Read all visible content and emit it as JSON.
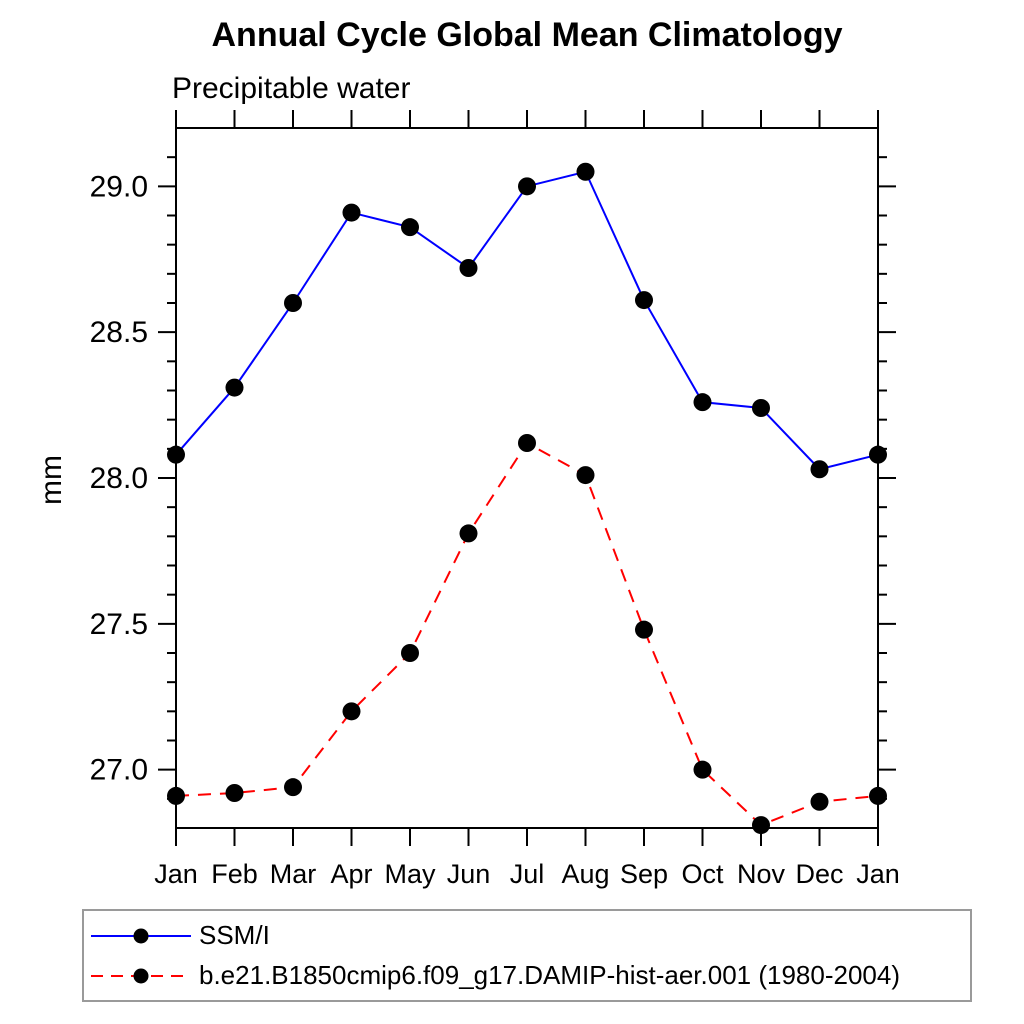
{
  "chart": {
    "title": "Annual Cycle Global Mean Climatology",
    "subtitle": "Precipitable water",
    "ylabel": "mm"
  },
  "chart_data": {
    "type": "line",
    "title": "Annual Cycle Global Mean Climatology",
    "subtitle": "Precipitable water",
    "xlabel": "",
    "ylabel": "mm",
    "categories": [
      "Jan",
      "Feb",
      "Mar",
      "Apr",
      "May",
      "Jun",
      "Jul",
      "Aug",
      "Sep",
      "Oct",
      "Nov",
      "Dec",
      "Jan"
    ],
    "series": [
      {
        "name": "SSM/I",
        "color": "#0000ff",
        "line_style": "solid",
        "marker": "black-dot",
        "values": [
          28.08,
          28.31,
          28.6,
          28.91,
          28.86,
          28.72,
          29.0,
          29.05,
          28.61,
          28.26,
          28.24,
          28.03,
          28.08
        ]
      },
      {
        "name": "b.e21.B1850cmip6.f09_g17.DAMIP-hist-aer.001 (1980-2004)",
        "color": "#ff0000",
        "line_style": "dashed",
        "marker": "black-dot",
        "values": [
          26.91,
          26.92,
          26.94,
          27.2,
          27.4,
          27.81,
          28.12,
          28.01,
          27.48,
          27.0,
          26.81,
          26.89,
          26.91
        ]
      }
    ],
    "ylim": [
      26.8,
      29.2
    ],
    "y_major_tick_labels": [
      "27.0",
      "27.5",
      "28.0",
      "28.5",
      "29.0"
    ],
    "y_minor_step": 0.1,
    "grid": false,
    "legend_position": "bottom-left",
    "colors": {
      "axis": "#000000",
      "marker": "#000000",
      "legend_border": "#9a9a9a",
      "text": "#000000"
    }
  }
}
